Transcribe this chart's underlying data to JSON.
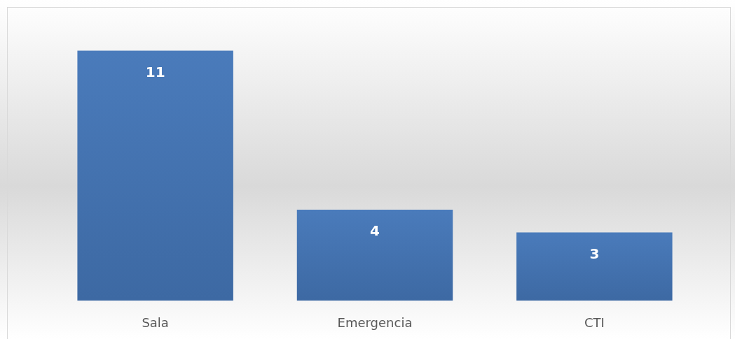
{
  "chart_data": {
    "type": "bar",
    "categories": [
      "Sala",
      "Emergencia",
      "CTI"
    ],
    "values": [
      11,
      4,
      3
    ],
    "color": "#4a7bbb",
    "data_labels": true
  }
}
